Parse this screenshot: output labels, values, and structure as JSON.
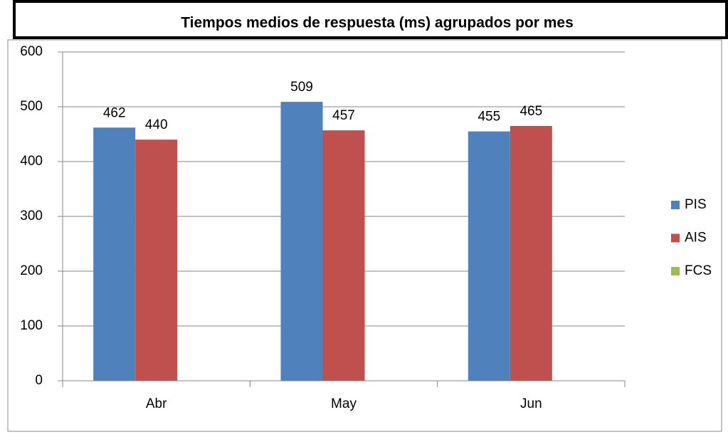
{
  "chart_data": {
    "type": "bar",
    "title": "Tiempos medios de respuesta (ms) agrupados por mes",
    "categories": [
      "Abr",
      "May",
      "Jun"
    ],
    "series": [
      {
        "name": "PIS",
        "color": "#4f81bd",
        "values": [
          462,
          509,
          455
        ]
      },
      {
        "name": "AIS",
        "color": "#c0504d",
        "values": [
          440,
          457,
          465
        ]
      },
      {
        "name": "FCS",
        "color": "#9bbb59",
        "values": [
          null,
          null,
          null
        ]
      }
    ],
    "ylim": [
      0,
      600
    ],
    "yticks": [
      0,
      100,
      200,
      300,
      400,
      500,
      600
    ],
    "grid": true,
    "legend": "right"
  }
}
